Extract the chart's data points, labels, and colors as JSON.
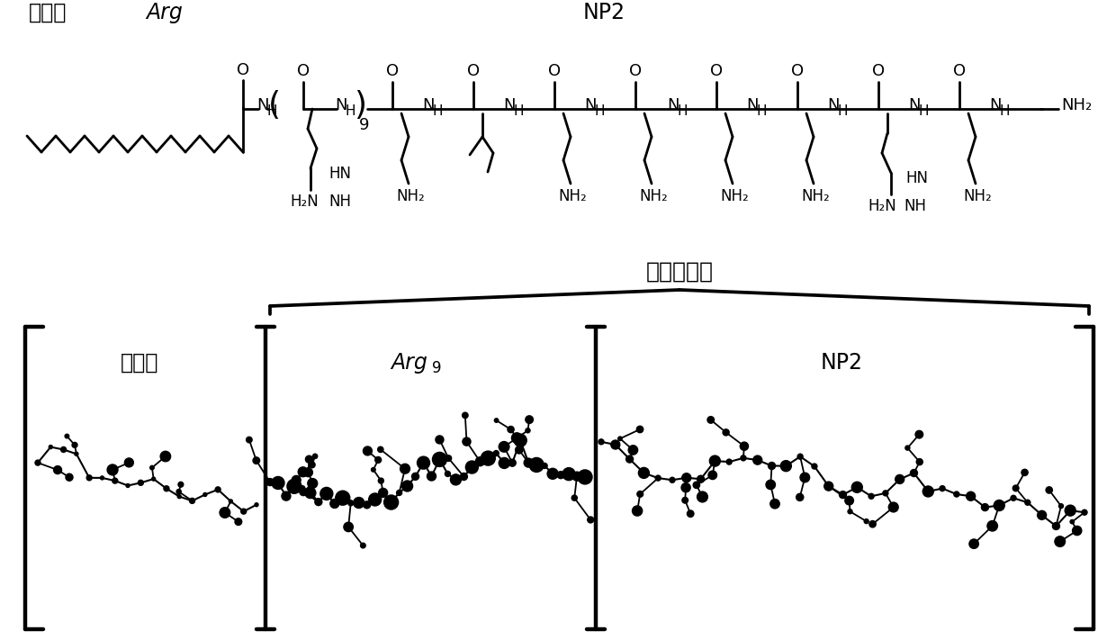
{
  "background_color": "#ffffff",
  "title_top_left": "棕桦酸",
  "title_top_arg": "Arg",
  "title_top_np2": "NP2",
  "label_arg9_main": "Arg",
  "label_arg9_sub": "9",
  "label_np2_bottom": "NP2",
  "label_palmitic_bottom": "棕桦酸",
  "label_tandem": "串联穿膜肽",
  "fig_width": 12.4,
  "fig_height": 7.11,
  "dpi": 100
}
